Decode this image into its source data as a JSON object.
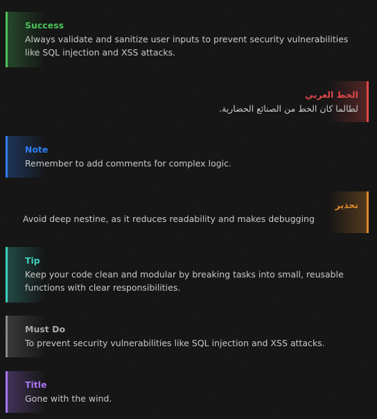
{
  "callouts": [
    {
      "id": "success",
      "title": "Success",
      "body": "Always validate and sanitize user inputs to prevent security vulnerabilities like SQL injection and XSS attacks.",
      "color": "#4cc45a"
    },
    {
      "id": "arabic",
      "title": "الخط العربي",
      "body": "لطالما كان الخط من الصنائع الحضارية.",
      "color": "#e04848"
    },
    {
      "id": "note",
      "title": "Note",
      "body": "Remember to add comments for complex logic.",
      "color": "#2f7df6"
    },
    {
      "id": "warning",
      "title": "تحذير",
      "body": "Avoid deep nestine, as it reduces readability and makes debugging",
      "color": "#e08a2c"
    },
    {
      "id": "tip",
      "title": "Tip",
      "body": "Keep your code clean and modular by breaking tasks into small, reusable functions with clear responsibilities.",
      "color": "#3fcfbf"
    },
    {
      "id": "must-do",
      "title": "Must Do",
      "body": "To prevent security vulnerabilities like SQL injection and XSS attacks.",
      "color": "#8a8a8a"
    },
    {
      "id": "title",
      "title": "Title",
      "body": "Gone with the wind.",
      "color": "#a775f2"
    }
  ]
}
